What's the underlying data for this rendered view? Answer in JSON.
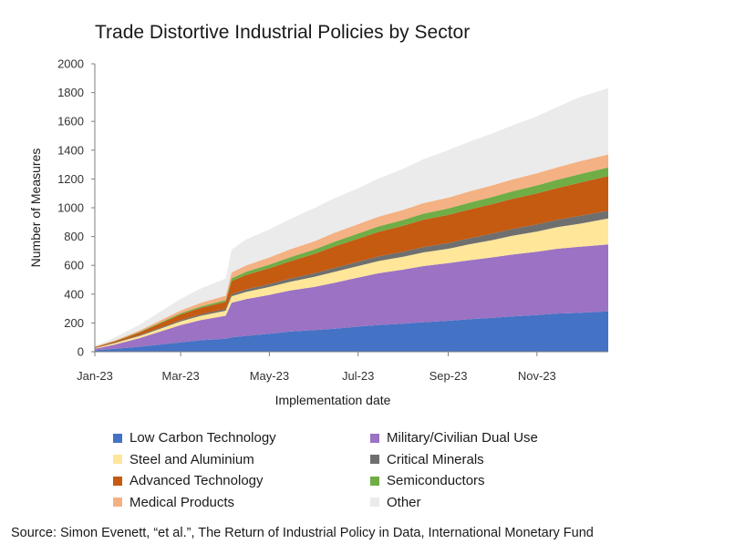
{
  "title": "Trade Distortive Industrial Policies by Sector",
  "source": "Source: Simon Evenett, “et al.”, The Return of Industrial Policy in Data, International Monetary Fund",
  "chart_data": {
    "type": "area",
    "stacked": true,
    "title": "Trade Distortive Industrial Policies by Sector",
    "xlabel": "Implementation date",
    "ylabel": "Number of Measures",
    "ylim": [
      0,
      2000
    ],
    "yticks": [
      0,
      200,
      400,
      600,
      800,
      1000,
      1200,
      1400,
      1600,
      1800,
      2000
    ],
    "xlim": [
      "2023-01-01",
      "2023-12-20"
    ],
    "xticks": [
      {
        "date": "2023-01-01",
        "label": "Jan-23"
      },
      {
        "date": "2023-03-01",
        "label": "Mar-23"
      },
      {
        "date": "2023-05-01",
        "label": "May-23"
      },
      {
        "date": "2023-07-01",
        "label": "Jul-23"
      },
      {
        "date": "2023-09-01",
        "label": "Sep-23"
      },
      {
        "date": "2023-11-01",
        "label": "Nov-23"
      }
    ],
    "grid": false,
    "legend_position": "bottom",
    "x": [
      "2023-01-01",
      "2023-01-15",
      "2023-02-01",
      "2023-02-15",
      "2023-03-01",
      "2023-03-15",
      "2023-04-01",
      "2023-04-05",
      "2023-04-15",
      "2023-05-01",
      "2023-05-15",
      "2023-06-01",
      "2023-06-15",
      "2023-07-01",
      "2023-07-15",
      "2023-08-01",
      "2023-08-15",
      "2023-09-01",
      "2023-09-15",
      "2023-10-01",
      "2023-10-15",
      "2023-11-01",
      "2023-11-15",
      "2023-12-01",
      "2023-12-20"
    ],
    "series": [
      {
        "name": "Low Carbon Technology",
        "color": "#4472c4",
        "values": [
          10,
          20,
          35,
          50,
          65,
          80,
          90,
          100,
          110,
          125,
          140,
          150,
          160,
          175,
          185,
          195,
          205,
          215,
          225,
          235,
          245,
          255,
          265,
          270,
          280
        ]
      },
      {
        "name": "Military/Civilian Dual Use",
        "color": "#9b72c4",
        "values": [
          10,
          30,
          60,
          90,
          120,
          140,
          160,
          240,
          255,
          270,
          285,
          300,
          320,
          340,
          360,
          375,
          390,
          400,
          410,
          420,
          430,
          440,
          450,
          460,
          465
        ]
      },
      {
        "name": "Steel and Aluminium",
        "color": "#ffe699",
        "values": [
          5,
          10,
          15,
          20,
          25,
          30,
          35,
          45,
          50,
          55,
          60,
          70,
          75,
          80,
          85,
          90,
          95,
          100,
          110,
          120,
          130,
          140,
          150,
          160,
          180
        ]
      },
      {
        "name": "Critical Minerals",
        "color": "#6f6f6f",
        "values": [
          2,
          3,
          5,
          7,
          9,
          10,
          12,
          15,
          18,
          20,
          22,
          25,
          27,
          30,
          32,
          35,
          37,
          40,
          42,
          45,
          47,
          50,
          52,
          55,
          55
        ]
      },
      {
        "name": "Advanced Technology",
        "color": "#c55a11",
        "values": [
          5,
          10,
          20,
          30,
          40,
          45,
          50,
          90,
          100,
          110,
          120,
          135,
          150,
          160,
          170,
          180,
          190,
          195,
          200,
          205,
          210,
          215,
          220,
          230,
          240
        ]
      },
      {
        "name": "Semiconductors",
        "color": "#70ad47",
        "values": [
          1,
          2,
          4,
          6,
          8,
          10,
          12,
          20,
          22,
          25,
          28,
          30,
          33,
          36,
          38,
          40,
          42,
          45,
          47,
          50,
          52,
          55,
          57,
          60,
          60
        ]
      },
      {
        "name": "Medical Products",
        "color": "#f4b183",
        "values": [
          2,
          5,
          10,
          15,
          20,
          25,
          30,
          40,
          45,
          50,
          55,
          58,
          62,
          65,
          68,
          70,
          73,
          75,
          78,
          80,
          82,
          85,
          87,
          90,
          90
        ]
      },
      {
        "name": "Other",
        "color": "#ebebeb",
        "values": [
          5,
          20,
          40,
          60,
          80,
          100,
          120,
          160,
          180,
          195,
          210,
          230,
          240,
          250,
          265,
          285,
          305,
          330,
          345,
          360,
          375,
          395,
          420,
          445,
          460
        ]
      }
    ]
  }
}
